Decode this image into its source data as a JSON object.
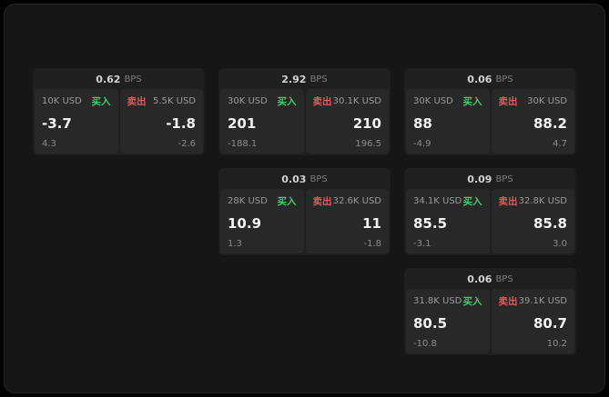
{
  "colors": {
    "buy_accent": "#3ecf6f",
    "sell_accent": "#e05b5b",
    "card_bg": "#1f1f1f",
    "panel_bg": "#282828"
  },
  "cards": [
    {
      "spread": "0.62",
      "unit": "BPS",
      "buy": {
        "size": "10K USD",
        "label": "买入",
        "price": "-3.7",
        "sub": "4.3"
      },
      "sell": {
        "label": "卖出",
        "size": "5.5K USD",
        "price": "-1.8",
        "sub": "-2.6"
      }
    },
    {
      "spread": "2.92",
      "unit": "BPS",
      "buy": {
        "size": "30K USD",
        "label": "买入",
        "price": "201",
        "sub": "-188.1"
      },
      "sell": {
        "label": "卖出",
        "size": "30.1K USD",
        "price": "210",
        "sub": "196.5"
      }
    },
    {
      "spread": "0.06",
      "unit": "BPS",
      "buy": {
        "size": "30K USD",
        "label": "买入",
        "price": "88",
        "sub": "-4.9"
      },
      "sell": {
        "label": "卖出",
        "size": "30K USD",
        "price": "88.2",
        "sub": "4.7"
      }
    },
    {
      "spread": "0.03",
      "unit": "BPS",
      "buy": {
        "size": "28K USD",
        "label": "买入",
        "price": "10.9",
        "sub": "1.3"
      },
      "sell": {
        "label": "卖出",
        "size": "32.6K USD",
        "price": "11",
        "sub": "-1.8"
      }
    },
    {
      "spread": "0.09",
      "unit": "BPS",
      "buy": {
        "size": "34.1K USD",
        "label": "买入",
        "price": "85.5",
        "sub": "-3.1"
      },
      "sell": {
        "label": "卖出",
        "size": "32.8K USD",
        "price": "85.8",
        "sub": "3.0"
      }
    },
    {
      "spread": "0.06",
      "unit": "BPS",
      "buy": {
        "size": "31.8K USD",
        "label": "买入",
        "price": "80.5",
        "sub": "-10.8"
      },
      "sell": {
        "label": "卖出",
        "size": "39.1K USD",
        "price": "80.7",
        "sub": "10.2"
      }
    }
  ]
}
